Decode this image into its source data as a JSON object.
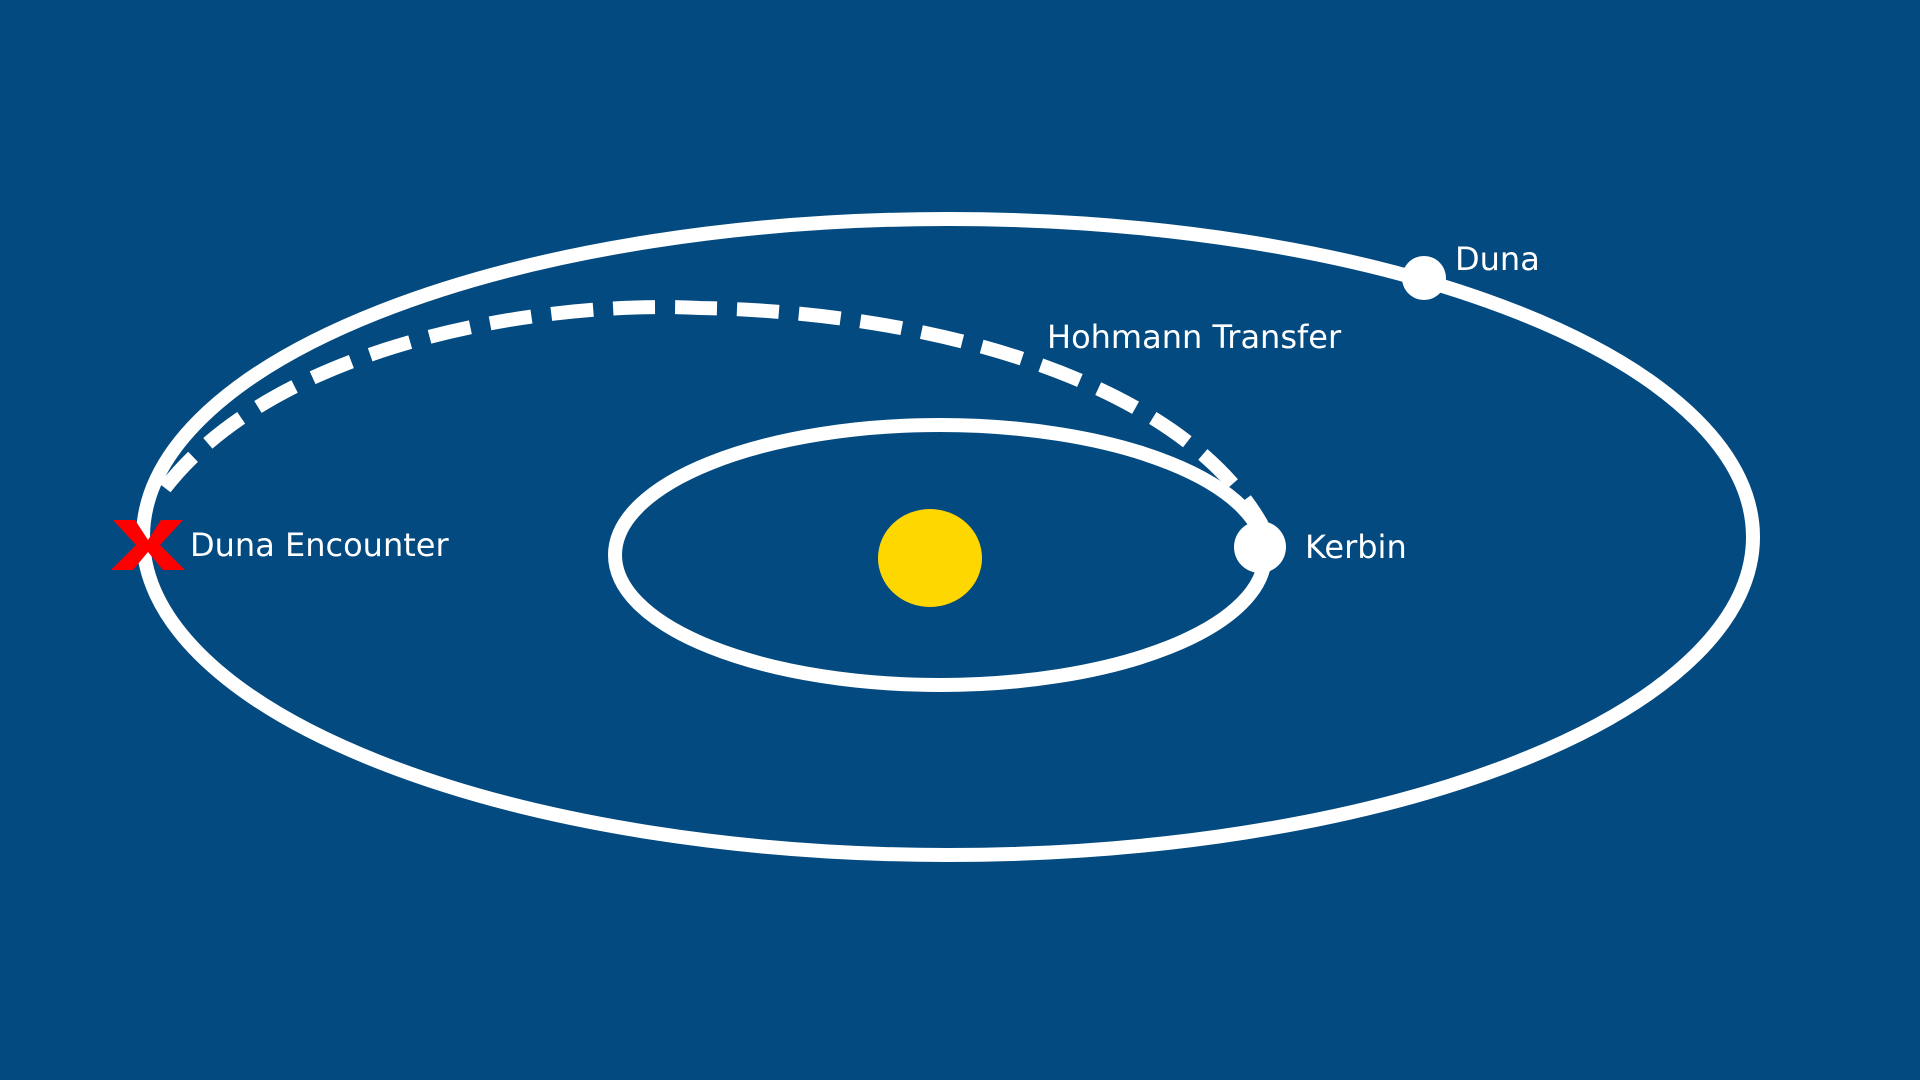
{
  "diagram": {
    "background_color": "#034a80",
    "orbit_color": "#ffffff",
    "sun_color": "#ffd700",
    "marker_color": "#ff0000",
    "labels": {
      "duna": "Duna",
      "hohmann_transfer": "Hohmann Transfer",
      "kerbin": "Kerbin",
      "duna_encounter": "Duna Encounter"
    },
    "icons": {
      "sun": "sun-icon",
      "kerbin": "planet-kerbin-icon",
      "duna": "planet-duna-icon",
      "encounter": "x-marker-icon"
    }
  }
}
